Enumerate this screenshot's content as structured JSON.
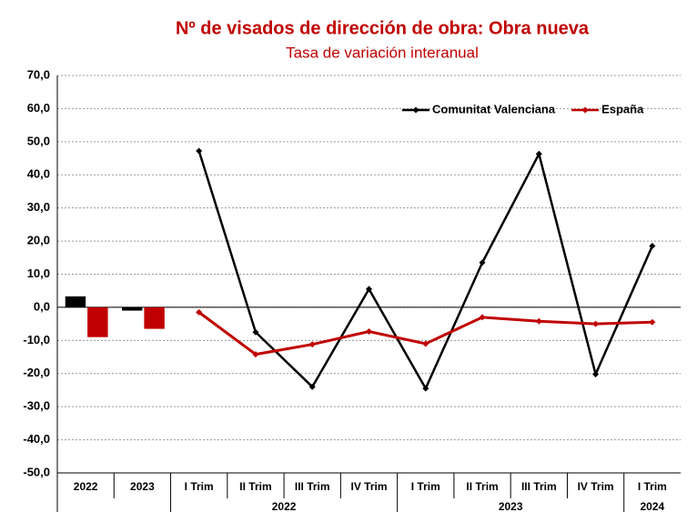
{
  "chart_data": {
    "type": "combo",
    "title": "Nº de visados de dirección de obra: Obra nueva",
    "subtitle": "Tasa de variación interanual",
    "bar_categories": [
      "2022",
      "2023"
    ],
    "categories": [
      "I Trim",
      "II Trim",
      "III Trim",
      "IV Trim",
      "I Trim",
      "II Trim",
      "III Trim",
      "IV Trim",
      "I Trim"
    ],
    "category_groups": [
      {
        "label": "2022",
        "span": 4
      },
      {
        "label": "2023",
        "span": 4
      },
      {
        "label": "2024",
        "span": 1
      }
    ],
    "series": [
      {
        "name": "Comunitat Valenciana",
        "color": "#000000",
        "bar_values": [
          3.3,
          -1.0
        ],
        "values": [
          47.2,
          -7.5,
          -24.0,
          5.5,
          -24.5,
          13.5,
          46.3,
          -20.2,
          18.5
        ]
      },
      {
        "name": "España",
        "color": "#c00000",
        "bar_values": [
          -9.0,
          -6.5
        ],
        "values": [
          -1.5,
          -14.2,
          -11.2,
          -7.3,
          -11.0,
          -3.0,
          -4.2,
          -5.0,
          -4.5
        ]
      }
    ],
    "ylim": [
      -50,
      70
    ],
    "yticks": [
      {
        "value": -50,
        "label": "-50,0"
      },
      {
        "value": -40,
        "label": "-40,0"
      },
      {
        "value": -30,
        "label": "-30,0"
      },
      {
        "value": -20,
        "label": "-20,0"
      },
      {
        "value": -10,
        "label": "-10,0"
      },
      {
        "value": 0,
        "label": "0,0"
      },
      {
        "value": 10,
        "label": "10,0"
      },
      {
        "value": 20,
        "label": "20,0"
      },
      {
        "value": 30,
        "label": "30,0"
      },
      {
        "value": 40,
        "label": "40,0"
      },
      {
        "value": 50,
        "label": "50,0"
      },
      {
        "value": 60,
        "label": "60,0"
      },
      {
        "value": 70,
        "label": "70,0"
      }
    ],
    "grid": true,
    "legend": "top-right"
  }
}
